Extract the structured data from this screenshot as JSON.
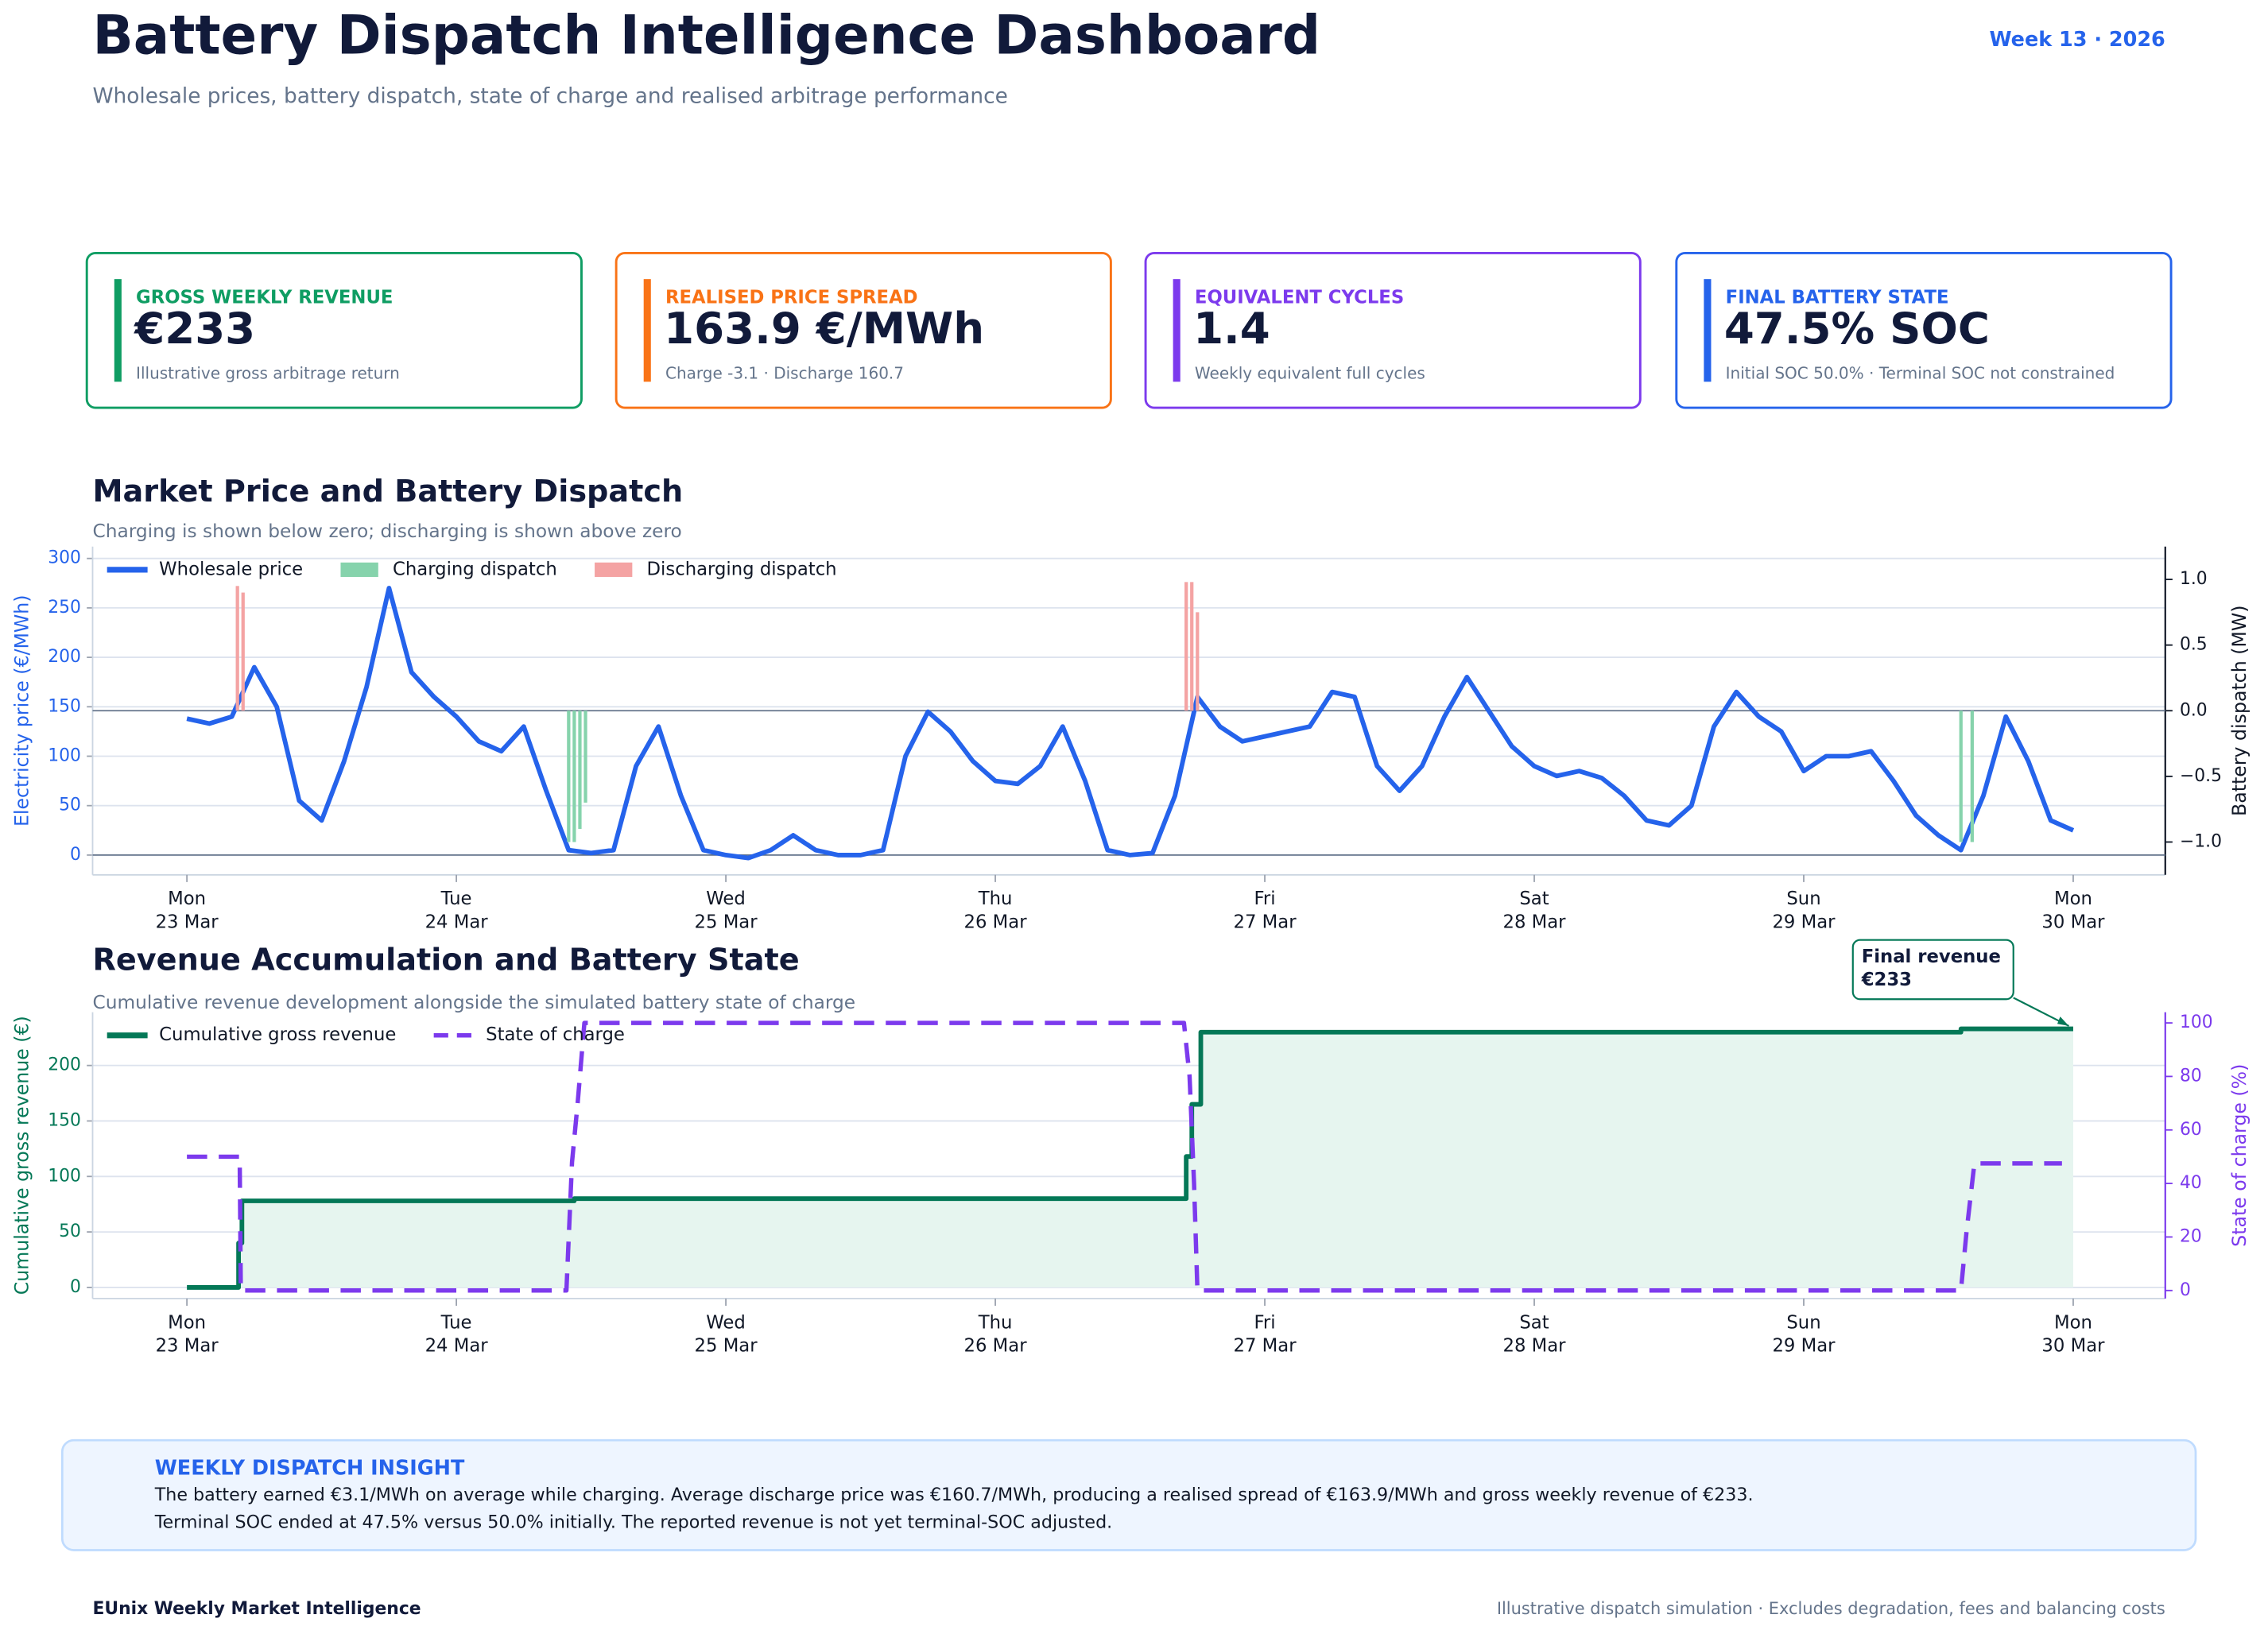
{
  "header": {
    "title": "Battery Dispatch Intelligence Dashboard",
    "subtitle": "Wholesale prices, battery dispatch, state of charge and realised arbitrage performance",
    "week": "Week 13 · 2026"
  },
  "kpis": [
    {
      "label": "GROSS WEEKLY REVENUE",
      "value": "€233",
      "note": "Illustrative gross arbitrage return",
      "color": "#0f9d63"
    },
    {
      "label": "REALISED PRICE SPREAD",
      "value": "163.9 €/MWh",
      "note": "Charge -3.1 · Discharge 160.7",
      "color": "#f97316"
    },
    {
      "label": "EQUIVALENT CYCLES",
      "value": "1.4",
      "note": "Weekly equivalent full cycles",
      "color": "#7c3aed"
    },
    {
      "label": "FINAL BATTERY STATE",
      "value": "47.5% SOC",
      "note": "Initial SOC 50.0% · Terminal SOC not constrained",
      "color": "#2563eb"
    }
  ],
  "chart_data": [
    {
      "type": "line",
      "title": "Market Price and Battery Dispatch",
      "subtitle": "Charging is shown below zero; discharging is shown above zero",
      "xlim": [
        -8.4,
        176.2
      ],
      "xticks": [
        {
          "value": 0,
          "label": "Mon",
          "date": "23 Mar"
        },
        {
          "value": 24,
          "label": "Tue",
          "date": "24 Mar"
        },
        {
          "value": 48,
          "label": "Wed",
          "date": "25 Mar"
        },
        {
          "value": 72,
          "label": "Thu",
          "date": "26 Mar"
        },
        {
          "value": 96,
          "label": "Fri",
          "date": "27 Mar"
        },
        {
          "value": 120,
          "label": "Sat",
          "date": "28 Mar"
        },
        {
          "value": 144,
          "label": "Sun",
          "date": "29 Mar"
        },
        {
          "value": 168,
          "label": "Mon",
          "date": "30 Mar"
        }
      ],
      "ylim": [
        -20,
        312
      ],
      "yticks": [
        0,
        50,
        100,
        150,
        200,
        250,
        300
      ],
      "y_label": "Electricity price (€/MWh)",
      "y_color": "#2563eb",
      "y2lim": [
        -1.25,
        1.25
      ],
      "y2ticks": [
        {
          "value": -1,
          "label": "−1.0"
        },
        {
          "value": -0.5,
          "label": "−0.5"
        },
        {
          "value": 0,
          "label": "0.0"
        },
        {
          "value": 0.5,
          "label": "0.5"
        },
        {
          "value": 1,
          "label": "1.0"
        }
      ],
      "y2_label": "Battery dispatch (MW)",
      "y2_color": "#111827",
      "grid": true,
      "legend": "upper left",
      "series": [
        {
          "name": "Wholesale price",
          "color": "#2563eb",
          "type": "line",
          "x": [
            0,
            2,
            4,
            6,
            8,
            10,
            12,
            14,
            16,
            18,
            20,
            22,
            24,
            26,
            28,
            30,
            32,
            34,
            36,
            38,
            40,
            42,
            44,
            46,
            48,
            50,
            52,
            54,
            56,
            58,
            60,
            62,
            64,
            66,
            68,
            70,
            72,
            74,
            76,
            78,
            80,
            82,
            84,
            86,
            88,
            90,
            92,
            94,
            96,
            98,
            100,
            102,
            104,
            106,
            108,
            110,
            112,
            114,
            116,
            118,
            120,
            122,
            124,
            126,
            128,
            130,
            132,
            134,
            136,
            138,
            140,
            142,
            144,
            146,
            148,
            150,
            152,
            154,
            156,
            158,
            160,
            162,
            164,
            166,
            168
          ],
          "values": [
            138,
            133,
            140,
            190,
            150,
            55,
            35,
            95,
            170,
            270,
            185,
            160,
            140,
            115,
            105,
            130,
            65,
            5,
            2,
            5,
            90,
            130,
            60,
            5,
            0,
            -3,
            5,
            20,
            5,
            0,
            0,
            5,
            100,
            145,
            125,
            95,
            75,
            72,
            90,
            130,
            75,
            5,
            0,
            2,
            60,
            160,
            130,
            115,
            120,
            125,
            130,
            165,
            160,
            90,
            65,
            90,
            140,
            180,
            145,
            110,
            90,
            80,
            85,
            78,
            60,
            35,
            30,
            50,
            130,
            165,
            140,
            125,
            85,
            100,
            100,
            105,
            75,
            40,
            20,
            5,
            60,
            140,
            95,
            35,
            25
          ]
        },
        {
          "name": "Charging dispatch",
          "color": "#86d3ac",
          "type": "bar",
          "axis": "y2",
          "x": [
            34,
            34.5,
            35,
            35.5,
            158,
            159
          ],
          "values": [
            -1,
            -1,
            -0.9,
            -0.7,
            -1,
            -1
          ]
        },
        {
          "name": "Discharging dispatch",
          "color": "#f4a3a3",
          "type": "bar",
          "axis": "y2",
          "x": [
            4.5,
            5,
            89,
            89.5,
            90
          ],
          "values": [
            0.95,
            0.9,
            0.98,
            0.98,
            0.75
          ]
        }
      ]
    },
    {
      "type": "line",
      "title": "Revenue Accumulation and Battery State",
      "subtitle": "Cumulative revenue development alongside the simulated battery state of charge",
      "xlim": [
        -8.4,
        176.2
      ],
      "xticks": [
        {
          "value": 0,
          "label": "Mon",
          "date": "23 Mar"
        },
        {
          "value": 24,
          "label": "Tue",
          "date": "24 Mar"
        },
        {
          "value": 48,
          "label": "Wed",
          "date": "25 Mar"
        },
        {
          "value": 72,
          "label": "Thu",
          "date": "26 Mar"
        },
        {
          "value": 96,
          "label": "Fri",
          "date": "27 Mar"
        },
        {
          "value": 120,
          "label": "Sat",
          "date": "28 Mar"
        },
        {
          "value": 144,
          "label": "Sun",
          "date": "29 Mar"
        },
        {
          "value": 168,
          "label": "Mon",
          "date": "30 Mar"
        }
      ],
      "ylim": [
        -10,
        248
      ],
      "yticks": [
        0,
        50,
        100,
        150,
        200
      ],
      "y_label": "Cumulative gross revenue (€)",
      "y_color": "#047857",
      "y2lim": [
        -3,
        104
      ],
      "y2ticks": [
        0,
        20,
        40,
        60,
        80,
        100
      ],
      "y2_label": "State of charge (%)",
      "y2_color": "#7c3aed",
      "grid": true,
      "legend": "upper left",
      "series": [
        {
          "name": "Cumulative gross revenue",
          "color": "#047857",
          "type": "line",
          "fill": "#e6f5ef",
          "x": [
            0,
            4.6,
            4.6,
            4.9,
            4.9,
            34.5,
            34.5,
            89,
            89,
            89.5,
            89.5,
            90.3,
            90.3,
            158,
            158,
            168
          ],
          "values": [
            0,
            0,
            40,
            40,
            78,
            78,
            80,
            80,
            118,
            118,
            165,
            165,
            230,
            230,
            233,
            233
          ]
        },
        {
          "name": "State of charge",
          "color": "#7c3aed",
          "type": "line",
          "dashed": true,
          "axis": "y2",
          "x": [
            0,
            4.7,
            4.8,
            33.8,
            34.3,
            34.8,
            35.4,
            88.8,
            89.3,
            89.7,
            90,
            158,
            158.5,
            159.2,
            167
          ],
          "values": [
            50,
            50,
            0,
            0,
            48,
            70,
            100,
            100,
            80,
            40,
            0,
            0,
            22,
            47.5,
            47.5
          ]
        }
      ],
      "annotation": {
        "lines": [
          "Final revenue",
          "€233"
        ],
        "x": 168,
        "y": 233
      }
    }
  ],
  "insight": {
    "title": "WEEKLY DISPATCH INSIGHT",
    "lines": [
      "The battery earned €3.1/MWh on average while charging. Average discharge price was €160.7/MWh, producing a realised spread of €163.9/MWh and gross weekly revenue of €233.",
      "Terminal SOC ended at 47.5% versus 50.0% initially. The reported revenue is not yet terminal-SOC adjusted."
    ]
  },
  "footer": {
    "left": "EUnix Weekly Market Intelligence",
    "right": "Illustrative dispatch simulation · Excludes degradation, fees and balancing costs"
  }
}
